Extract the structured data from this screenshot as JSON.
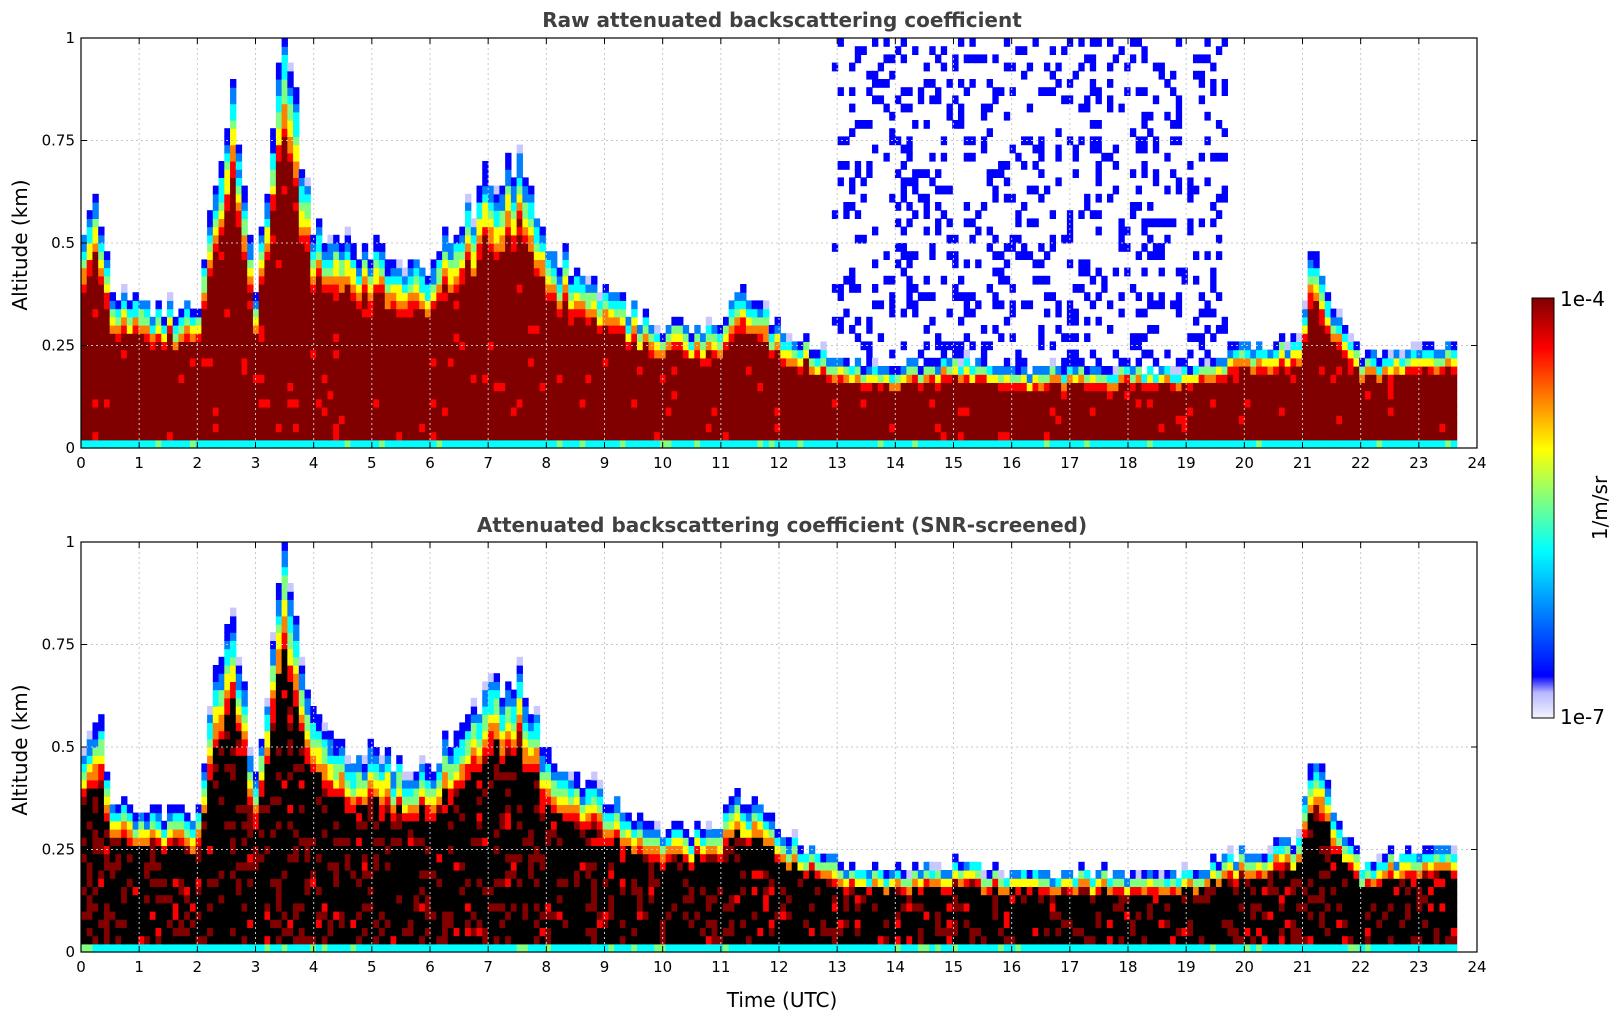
{
  "chart_data": [
    {
      "type": "heatmap",
      "title": "Raw attenuated backscattering coefficient",
      "xlabel": "",
      "ylabel": "Altitude (km)",
      "xlim": [
        0,
        24
      ],
      "ylim": [
        0,
        1
      ],
      "xticks": [
        0,
        1,
        2,
        3,
        4,
        5,
        6,
        7,
        8,
        9,
        10,
        11,
        12,
        13,
        14,
        15,
        16,
        17,
        18,
        19,
        20,
        21,
        22,
        23,
        24
      ],
      "yticks": [
        0,
        0.25,
        0.5,
        0.75,
        1
      ],
      "ytick_labels": [
        "0",
        "0.25",
        "0.5",
        "0.75",
        "1"
      ],
      "grid": true,
      "screened": false,
      "data_end_time": 23.65,
      "aerosol_layer_top_km": {
        "time": [
          0,
          0.3,
          0.5,
          1,
          2,
          2.6,
          3,
          3.5,
          4,
          5,
          6,
          7,
          7.5,
          8,
          9,
          10,
          11,
          11.3,
          12,
          13,
          14,
          15,
          16,
          17,
          18,
          19,
          20,
          21,
          21.1,
          22,
          23,
          23.65
        ],
        "top": [
          0.5,
          0.6,
          0.4,
          0.35,
          0.35,
          0.9,
          0.4,
          1.0,
          0.55,
          0.48,
          0.45,
          0.65,
          0.7,
          0.5,
          0.38,
          0.3,
          0.3,
          0.4,
          0.3,
          0.22,
          0.2,
          0.22,
          0.2,
          0.2,
          0.2,
          0.2,
          0.25,
          0.28,
          0.5,
          0.22,
          0.26,
          0.25
        ]
      },
      "noise_region_time": [
        12.9,
        19.7
      ]
    },
    {
      "type": "heatmap",
      "title": "Attenuated backscattering coefficient (SNR-screened)",
      "xlabel": "Time (UTC)",
      "ylabel": "Altitude (km)",
      "xlim": [
        0,
        24
      ],
      "ylim": [
        0,
        1
      ],
      "xticks": [
        0,
        1,
        2,
        3,
        4,
        5,
        6,
        7,
        8,
        9,
        10,
        11,
        12,
        13,
        14,
        15,
        16,
        17,
        18,
        19,
        20,
        21,
        22,
        23,
        24
      ],
      "yticks": [
        0,
        0.25,
        0.5,
        0.75,
        1
      ],
      "ytick_labels": [
        "0",
        "0.25",
        "0.5",
        "0.75",
        "1"
      ],
      "grid": true,
      "screened": true,
      "data_end_time": 23.65
    }
  ],
  "colorbar": {
    "label": "1/m/sr",
    "max_label": "1e-4",
    "min_label": "1e-7",
    "colormap": [
      "#ececff",
      "#c8c8ff",
      "#0000ff",
      "#0080ff",
      "#00ffff",
      "#80ff80",
      "#ffff00",
      "#ff8000",
      "#ff0000",
      "#800000"
    ]
  }
}
